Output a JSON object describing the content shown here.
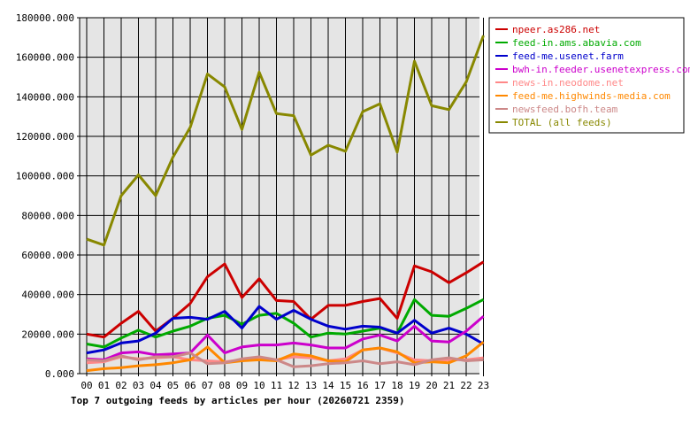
{
  "chart_data": {
    "type": "line",
    "title": "Top 7 outgoing feeds by articles per hour (20260721 2359)",
    "xlabel": "",
    "ylabel": "",
    "categories": [
      "00",
      "01",
      "02",
      "03",
      "04",
      "05",
      "06",
      "07",
      "08",
      "09",
      "10",
      "11",
      "12",
      "13",
      "14",
      "15",
      "16",
      "17",
      "18",
      "19",
      "20",
      "21",
      "22",
      "23"
    ],
    "ylim": [
      0,
      180000
    ],
    "yticks": [
      0,
      20000,
      40000,
      60000,
      80000,
      100000,
      120000,
      140000,
      160000,
      180000
    ],
    "ytick_labels": [
      "0.000",
      "20000.000",
      "40000.000",
      "60000.000",
      "80000.000",
      "100000.000",
      "120000.000",
      "140000.000",
      "160000.000",
      "180000.000"
    ],
    "grid": true,
    "legend_position": "right",
    "series": [
      {
        "name": "npeer.as286.net",
        "color": "#cc0000",
        "values": [
          20000,
          18500,
          25500,
          31500,
          21500,
          28000,
          35500,
          49000,
          55500,
          38500,
          48000,
          37000,
          36500,
          27500,
          34500,
          34500,
          36500,
          38000,
          28000,
          54500,
          51500,
          46000,
          51000,
          56500
        ]
      },
      {
        "name": "feed-in.ams.abavia.com",
        "color": "#00aa00",
        "values": [
          15000,
          13500,
          18000,
          22000,
          18500,
          21500,
          24000,
          28000,
          29500,
          25000,
          29500,
          30500,
          25500,
          18500,
          20500,
          20000,
          21500,
          23000,
          20500,
          37500,
          29500,
          29000,
          33000,
          37500
        ]
      },
      {
        "name": "feed-me.usenet.farm",
        "color": "#0000cc",
        "values": [
          10500,
          12000,
          15500,
          16500,
          20500,
          28000,
          28500,
          27500,
          31500,
          23000,
          34000,
          27500,
          32000,
          27500,
          24000,
          22500,
          24000,
          23500,
          20500,
          27000,
          20500,
          23000,
          20000,
          15000
        ]
      },
      {
        "name": "bwh-in.feeder.usenetexpress.com",
        "color": "#cc00cc",
        "values": [
          7500,
          7000,
          10500,
          11000,
          9500,
          10000,
          10500,
          19500,
          10500,
          13500,
          14500,
          14500,
          15500,
          14500,
          13000,
          13000,
          17500,
          19500,
          16500,
          24000,
          16500,
          16000,
          21500,
          29000
        ]
      },
      {
        "name": "news-in.neodome.net",
        "color": "#ff8888",
        "values": [
          5500,
          6000,
          8500,
          7500,
          8000,
          8500,
          7000,
          6500,
          6000,
          7000,
          7500,
          7000,
          8500,
          8000,
          6500,
          7500,
          12000,
          13000,
          10500,
          7000,
          6500,
          7000,
          7000,
          8000
        ]
      },
      {
        "name": "feed-me.highwinds-media.com",
        "color": "#ff8800",
        "values": [
          1500,
          2500,
          3000,
          4000,
          4500,
          5500,
          7000,
          13500,
          5500,
          6500,
          7000,
          6500,
          10000,
          9000,
          6500,
          6000,
          12000,
          13000,
          11000,
          5500,
          6000,
          5500,
          9000,
          16000
        ]
      },
      {
        "name": "newsfeed.bofh.team",
        "color": "#cc8888",
        "values": [
          7000,
          6500,
          9000,
          7000,
          8500,
          8500,
          10500,
          5000,
          5500,
          7500,
          8500,
          7000,
          3500,
          4000,
          5000,
          5500,
          6500,
          5000,
          6000,
          4500,
          7000,
          8000,
          6500,
          7000
        ]
      },
      {
        "name": "TOTAL (all feeds)",
        "color": "#888800",
        "values": [
          68000,
          65000,
          90000,
          100500,
          90000,
          109500,
          124500,
          151500,
          145000,
          123500,
          152500,
          131500,
          130500,
          110500,
          115500,
          112500,
          132500,
          136500,
          112000,
          158000,
          135500,
          133500,
          147500,
          171000
        ]
      }
    ]
  }
}
